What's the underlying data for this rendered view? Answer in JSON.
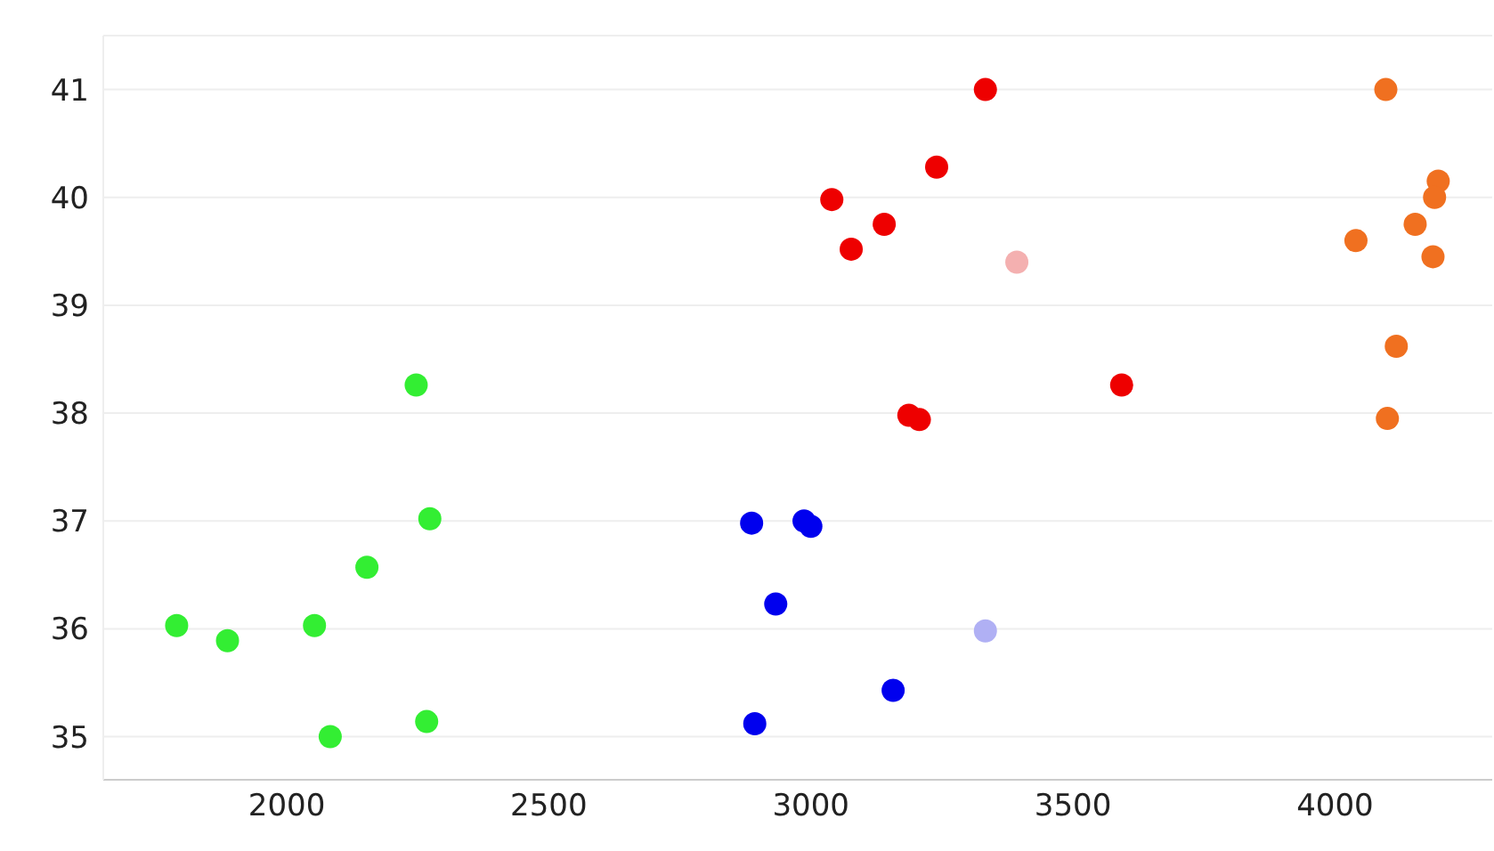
{
  "chart_data": {
    "type": "scatter",
    "xlim": [
      1650,
      4300
    ],
    "ylim": [
      34.6,
      41.5
    ],
    "xticks": [
      2000,
      2500,
      3000,
      3500,
      4000
    ],
    "yticks": [
      35,
      36,
      37,
      38,
      39,
      40,
      41
    ],
    "grid": "y",
    "marker": "circle",
    "legend": false,
    "series": [
      {
        "color": "#33ee33",
        "x": [
          1790,
          1887,
          2053,
          2083,
          2247,
          2273,
          2153,
          2267
        ],
        "values": [
          36.03,
          35.89,
          36.03,
          35.0,
          38.26,
          37.02,
          36.57,
          35.14
        ]
      },
      {
        "color": "#0000ee",
        "x": [
          2887,
          2987,
          3000,
          2933,
          2893,
          3157
        ],
        "values": [
          36.98,
          37.0,
          36.95,
          36.23,
          35.12,
          35.43
        ]
      },
      {
        "color": "#b0b0f4",
        "x": [
          3333
        ],
        "values": [
          35.98
        ]
      },
      {
        "color": "#ee0000",
        "x": [
          3333,
          3240,
          3040,
          3140,
          3077,
          3593,
          3187,
          3207
        ],
        "values": [
          41.0,
          40.28,
          39.98,
          39.75,
          39.52,
          38.26,
          37.98,
          37.94
        ]
      },
      {
        "color": "#f4b0b0",
        "x": [
          3393
        ],
        "values": [
          39.4
        ]
      },
      {
        "color": "#f07020",
        "x": [
          4097,
          4197,
          4190,
          4153,
          4040,
          4187,
          4117,
          4100
        ],
        "values": [
          41.0,
          40.15,
          40.0,
          39.75,
          39.6,
          39.45,
          38.62,
          37.95
        ]
      }
    ]
  }
}
